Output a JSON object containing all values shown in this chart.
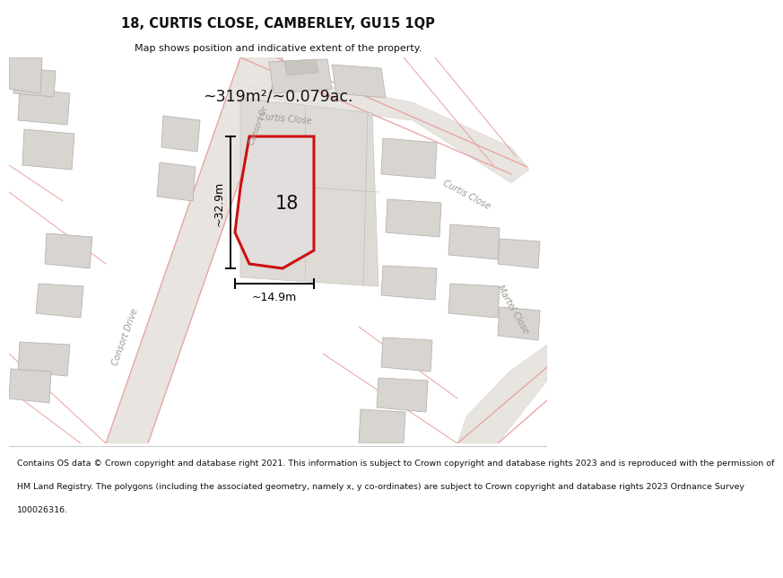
{
  "title": "18, CURTIS CLOSE, CAMBERLEY, GU15 1QP",
  "subtitle": "Map shows position and indicative extent of the property.",
  "area_label": "~319m²/~0.079ac.",
  "width_label": "~14.9m",
  "height_label": "~32.9m",
  "number_label": "18",
  "footer_lines": [
    "Contains OS data © Crown copyright and database right 2021. This information is subject to Crown copyright and database rights 2023 and is reproduced with the permission of",
    "HM Land Registry. The polygons (including the associated geometry, namely x, y co-ordinates) are subject to Crown copyright and database rights 2023 Ordnance Survey",
    "100026316."
  ],
  "map_bg": "#f2efec",
  "road_fill": "#e8e4e0",
  "road_edge": "#d0ccc8",
  "building_fill": "#d8d4d0",
  "building_edge": "#b8b4b0",
  "plot_bg": "#e0dcd8",
  "plot_edge": "#c8c4c0",
  "red_color": "#cc1111",
  "pink_road": "#e8a0a0",
  "street_color": "#999990",
  "dim_color": "#111111",
  "footer_bg": "#ffffff",
  "title_bg": "#ffffff"
}
